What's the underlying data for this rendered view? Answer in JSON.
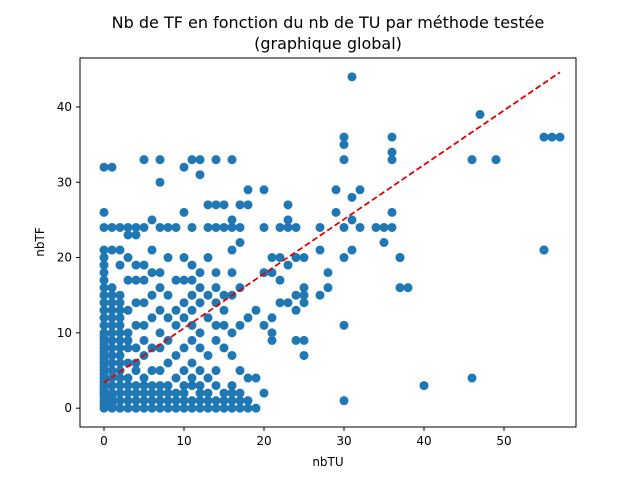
{
  "chart_data": {
    "type": "scatter",
    "title": "Nb de TF en fonction du nb de TU par méthode testée",
    "subtitle": "(graphique global)",
    "xlabel": "nbTU",
    "ylabel": "nbTF",
    "xlim": [
      -3,
      59
    ],
    "ylim": [
      -2.5,
      46.5
    ],
    "xticks": [
      0,
      10,
      20,
      30,
      40,
      50
    ],
    "yticks": [
      0,
      10,
      20,
      30,
      40
    ],
    "grid": false,
    "point_color": "#1f77b4",
    "trend_color": "#e00000",
    "trendline": {
      "x": [
        0,
        57
      ],
      "y": [
        3.4,
        44.6
      ]
    },
    "points": {
      "x": [
        0,
        0,
        0,
        0,
        0,
        0,
        0,
        0,
        0,
        0,
        0,
        0,
        0,
        0,
        0,
        0,
        0,
        0,
        0,
        0,
        0,
        0,
        0,
        0,
        0,
        0,
        0,
        0,
        0,
        0,
        0,
        0,
        0,
        0,
        0,
        1,
        1,
        1,
        1,
        1,
        1,
        1,
        1,
        1,
        1,
        1,
        1,
        1,
        1,
        1,
        1,
        1,
        1,
        1,
        1,
        1,
        1,
        2,
        2,
        2,
        2,
        2,
        2,
        2,
        2,
        2,
        2,
        2,
        2,
        2,
        2,
        2,
        2,
        2,
        2,
        2,
        3,
        3,
        3,
        3,
        3,
        3,
        3,
        3,
        3,
        3,
        3,
        3,
        3,
        3,
        4,
        4,
        4,
        4,
        4,
        4,
        4,
        4,
        4,
        4,
        4,
        4,
        4,
        5,
        5,
        5,
        5,
        5,
        5,
        5,
        5,
        5,
        5,
        5,
        5,
        5,
        6,
        6,
        6,
        6,
        6,
        6,
        6,
        6,
        6,
        6,
        6,
        7,
        7,
        7,
        7,
        7,
        7,
        7,
        7,
        7,
        7,
        7,
        7,
        7,
        8,
        8,
        8,
        8,
        8,
        8,
        8,
        8,
        8,
        8,
        9,
        9,
        9,
        9,
        9,
        9,
        9,
        9,
        9,
        10,
        10,
        10,
        10,
        10,
        10,
        10,
        10,
        10,
        10,
        10,
        10,
        11,
        11,
        11,
        11,
        11,
        11,
        11,
        11,
        11,
        11,
        11,
        11,
        11,
        12,
        12,
        12,
        12,
        12,
        12,
        12,
        12,
        12,
        12,
        12,
        12,
        13,
        13,
        13,
        13,
        13,
        13,
        13,
        13,
        13,
        13,
        14,
        14,
        14,
        14,
        14,
        14,
        14,
        14,
        14,
        14,
        14,
        14,
        15,
        15,
        15,
        15,
        15,
        15,
        15,
        15,
        15,
        16,
        16,
        16,
        16,
        16,
        16,
        16,
        16,
        16,
        16,
        16,
        16,
        17,
        17,
        17,
        17,
        17,
        17,
        17,
        17,
        17,
        18,
        18,
        18,
        18,
        18,
        18,
        19,
        19,
        19,
        20,
        20,
        20,
        20,
        20,
        21,
        21,
        21,
        21,
        21,
        22,
        22,
        22,
        22,
        23,
        23,
        23,
        23,
        23,
        24,
        24,
        24,
        24,
        24,
        25,
        25,
        25,
        25,
        25,
        25,
        27,
        27,
        27,
        28,
        28,
        29,
        29,
        30,
        30,
        30,
        30,
        30,
        30,
        30,
        31,
        31,
        31,
        31,
        32,
        32,
        34,
        35,
        35,
        36,
        36,
        36,
        36,
        36,
        37,
        37,
        37,
        38,
        40,
        46,
        46,
        47,
        49,
        55,
        55,
        55,
        56,
        57
      ],
      "y": [
        0,
        1,
        2,
        3,
        4,
        5,
        6,
        7,
        8,
        9,
        10,
        11,
        12,
        13,
        14,
        15,
        16,
        17,
        18,
        19,
        20,
        21,
        24,
        26,
        32,
        0.5,
        1.5,
        2.5,
        3.5,
        4.5,
        5.5,
        6.5,
        7.5,
        8.5,
        9.5,
        0,
        1,
        2,
        3,
        4,
        5,
        6,
        7,
        8,
        9,
        10,
        11,
        12,
        13,
        14,
        15,
        16,
        21,
        24,
        32,
        0.5,
        1.5,
        0,
        1,
        2,
        3,
        4,
        5,
        6,
        7,
        8,
        9,
        10,
        11,
        12,
        13,
        14,
        15,
        19,
        21,
        24,
        0,
        1,
        2,
        3,
        4,
        6,
        8,
        9,
        10,
        13,
        17,
        20,
        23,
        24,
        0,
        1,
        2,
        3,
        5,
        6,
        8,
        11,
        14,
        17,
        19,
        23,
        24,
        0,
        1,
        2,
        3,
        4,
        7,
        9,
        11,
        14,
        17,
        19,
        24,
        33,
        0,
        1,
        2,
        3,
        5,
        8,
        12,
        15,
        18,
        21,
        25,
        0,
        1,
        2,
        3,
        5,
        8,
        10,
        13,
        16,
        18,
        24,
        30,
        33,
        0,
        1,
        2,
        3,
        6,
        9,
        12,
        15,
        20,
        24,
        0,
        1,
        2,
        4,
        7,
        11,
        13,
        17,
        24,
        0,
        1,
        2,
        3,
        5,
        8,
        12,
        14,
        17,
        20,
        26,
        32,
        0,
        1,
        3,
        4,
        6,
        9,
        11,
        13,
        15,
        17,
        19,
        24,
        33,
        0,
        1,
        2,
        3,
        5,
        8,
        10,
        14,
        16,
        18,
        31,
        33,
        0,
        1,
        2,
        4,
        7,
        12,
        15,
        20,
        24,
        27,
        0,
        1,
        3,
        5,
        9,
        11,
        14,
        16,
        18,
        24,
        27,
        33,
        0,
        1,
        2,
        8,
        11,
        13,
        15,
        24,
        27,
        0,
        1,
        2,
        3,
        7,
        10,
        15,
        18,
        21,
        24,
        25,
        33,
        0,
        1,
        2,
        5,
        11,
        16,
        22,
        24,
        27,
        0,
        1,
        4,
        12,
        27,
        29,
        0,
        4,
        13,
        2,
        11,
        18,
        24,
        29,
        9,
        10,
        12,
        18,
        20,
        14,
        17,
        20,
        24,
        14,
        19,
        24,
        25,
        27,
        9,
        13,
        15,
        20,
        24,
        7,
        9,
        14,
        15,
        16,
        20,
        15,
        21,
        24,
        16,
        18,
        26,
        29,
        1,
        11,
        20,
        24,
        33,
        35,
        36,
        21,
        25,
        28,
        44,
        24,
        29,
        24,
        22,
        24,
        24,
        26,
        33,
        34,
        36,
        16,
        20,
        20,
        16,
        3,
        4,
        33,
        39,
        33,
        21,
        36,
        21,
        36,
        36
      ]
    }
  }
}
